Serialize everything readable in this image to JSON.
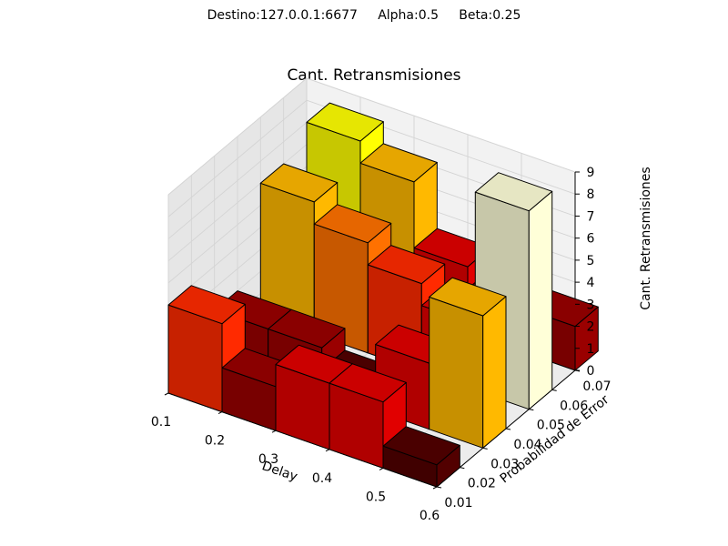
{
  "header": {
    "suptitle": "Destino:127.0.0.1:6677     Alpha:0.5     Beta:0.25"
  },
  "chart_data": {
    "type": "bar3d",
    "title": "Cant. Retransmisiones",
    "xlabel": "Delay",
    "ylabel": "Probabilidad de Error",
    "zlabel": "Cant. Retransmisiones",
    "x_ticks": [
      "0.1",
      "0.2",
      "0.3",
      "0.4",
      "0.5",
      "0.6"
    ],
    "y_ticks": [
      "0.01",
      "0.02",
      "0.03",
      "0.04",
      "0.05",
      "0.06",
      "0.07"
    ],
    "z_ticks": [
      "0",
      "1",
      "2",
      "3",
      "4",
      "5",
      "6",
      "7",
      "8",
      "9"
    ],
    "xlim": [
      0.1,
      0.6
    ],
    "ylim": [
      0.01,
      0.07
    ],
    "zlim": [
      0,
      9
    ],
    "colormap": "hot",
    "bars": [
      {
        "x": 0.1,
        "y": 0.01,
        "z": 4
      },
      {
        "x": 0.2,
        "y": 0.01,
        "z": 2
      },
      {
        "x": 0.3,
        "y": 0.01,
        "z": 3
      },
      {
        "x": 0.4,
        "y": 0.01,
        "z": 3
      },
      {
        "x": 0.5,
        "y": 0.01,
        "z": 1
      },
      {
        "x": 0.1,
        "y": 0.03,
        "z": 2
      },
      {
        "x": 0.2,
        "y": 0.03,
        "z": 2
      },
      {
        "x": 0.3,
        "y": 0.03,
        "z": 1
      },
      {
        "x": 0.4,
        "y": 0.03,
        "z": 3
      },
      {
        "x": 0.5,
        "y": 0.03,
        "z": 6
      },
      {
        "x": 0.1,
        "y": 0.05,
        "z": 6
      },
      {
        "x": 0.2,
        "y": 0.05,
        "z": 5
      },
      {
        "x": 0.3,
        "y": 0.05,
        "z": 4
      },
      {
        "x": 0.4,
        "y": 0.05,
        "z": 3
      },
      {
        "x": 0.5,
        "y": 0.05,
        "z": 9
      },
      {
        "x": 0.1,
        "y": 0.07,
        "z": 7
      },
      {
        "x": 0.2,
        "y": 0.07,
        "z": 6
      },
      {
        "x": 0.3,
        "y": 0.07,
        "z": 3
      },
      {
        "x": 0.4,
        "y": 0.07,
        "z": 2
      },
      {
        "x": 0.5,
        "y": 0.07,
        "z": 2
      }
    ]
  }
}
